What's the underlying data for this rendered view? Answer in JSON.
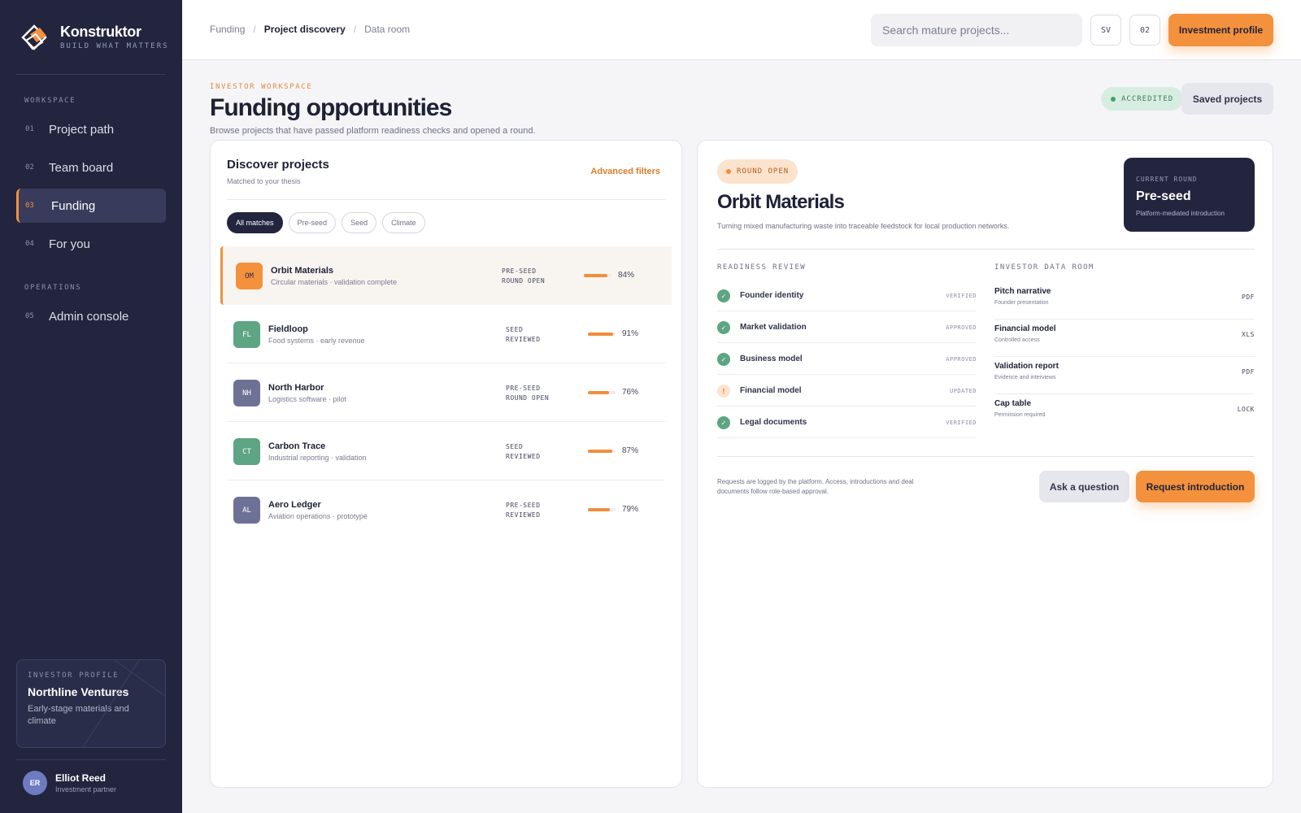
{
  "brand": {
    "name": "Konstruktor",
    "tagline": "BUILD WHAT MATTERS"
  },
  "sidebar": {
    "workspace_label": "WORKSPACE",
    "operations_label": "OPERATIONS",
    "items": [
      {
        "num": "01",
        "label": "Project path"
      },
      {
        "num": "02",
        "label": "Team board"
      },
      {
        "num": "03",
        "label": "Funding"
      },
      {
        "num": "04",
        "label": "For you"
      },
      {
        "num": "05",
        "label": "Admin console"
      }
    ],
    "active_item": "Funding",
    "investor_profile": {
      "label": "INVESTOR PROFILE",
      "name": "Northline Ventures",
      "description": "Early-stage materials and climate"
    },
    "user": {
      "initials": "ER",
      "name": "Elliot Reed",
      "role": "Investment partner"
    }
  },
  "topbar": {
    "breadcrumbs": [
      "Funding",
      "Project discovery",
      "Data room"
    ],
    "search_placeholder": "Search mature projects...",
    "btn_sv": "SV",
    "btn_02": "02",
    "investment_profile": "Investment profile"
  },
  "header": {
    "eyebrow": "INVESTOR WORKSPACE",
    "title": "Funding opportunities",
    "subtitle": "Browse projects that have passed platform readiness checks and opened a round.",
    "accredited": "ACCREDITED",
    "saved_projects": "Saved projects"
  },
  "discover": {
    "title": "Discover projects",
    "subtitle": "Matched to your thesis",
    "advanced_filters": "Advanced filters",
    "filters": [
      "All matches",
      "Pre-seed",
      "Seed",
      "Climate"
    ],
    "projects": [
      {
        "initials": "OM",
        "name": "Orbit Materials",
        "desc": "Circular materials · validation complete",
        "stage": "PRE-SEED",
        "status": "ROUND OPEN",
        "readiness": 84,
        "readiness_label": "84%",
        "color": "#f3913d"
      },
      {
        "initials": "FL",
        "name": "Fieldloop",
        "desc": "Food systems · early revenue",
        "stage": "SEED",
        "status": "REVIEWED",
        "readiness": 91,
        "readiness_label": "91%",
        "color": "#5da583"
      },
      {
        "initials": "NH",
        "name": "North Harbor",
        "desc": "Logistics software · pilot",
        "stage": "PRE-SEED",
        "status": "ROUND OPEN",
        "readiness": 76,
        "readiness_label": "76%",
        "color": "#6e7196"
      },
      {
        "initials": "CT",
        "name": "Carbon Trace",
        "desc": "Industrial reporting · validation",
        "stage": "SEED",
        "status": "REVIEWED",
        "readiness": 87,
        "readiness_label": "87%",
        "color": "#5da583"
      },
      {
        "initials": "AL",
        "name": "Aero Ledger",
        "desc": "Aviation operations · prototype",
        "stage": "PRE-SEED",
        "status": "REVIEWED",
        "readiness": 79,
        "readiness_label": "79%",
        "color": "#6e7196"
      }
    ]
  },
  "detail": {
    "round_status": "ROUND OPEN",
    "name": "Orbit Materials",
    "description": "Turning mixed manufacturing waste into traceable feedstock for local production networks.",
    "current_round": {
      "label": "CURRENT ROUND",
      "value": "Pre-seed",
      "note": "Platform-mediated introduction"
    },
    "readiness_title": "READINESS REVIEW",
    "readiness": [
      {
        "name": "Founder identity",
        "status": "VERIFIED",
        "state": "ok"
      },
      {
        "name": "Market validation",
        "status": "APPROVED",
        "state": "ok"
      },
      {
        "name": "Business model",
        "status": "APPROVED",
        "state": "ok"
      },
      {
        "name": "Financial model",
        "status": "UPDATED",
        "state": "warn"
      },
      {
        "name": "Legal documents",
        "status": "VERIFIED",
        "state": "ok"
      }
    ],
    "dataroom_title": "INVESTOR DATA ROOM",
    "documents": [
      {
        "name": "Pitch narrative",
        "desc": "Founder presentation",
        "type": "PDF"
      },
      {
        "name": "Financial model",
        "desc": "Controlled access",
        "type": "XLS"
      },
      {
        "name": "Validation report",
        "desc": "Evidence and interviews",
        "type": "PDF"
      },
      {
        "name": "Cap table",
        "desc": "Permission required",
        "type": "LOCK"
      }
    ],
    "disclaimer": "Requests are logged by the platform. Access, introductions and deal documents follow role-based approval.",
    "ask_question": "Ask a question",
    "request_intro": "Request introduction"
  }
}
